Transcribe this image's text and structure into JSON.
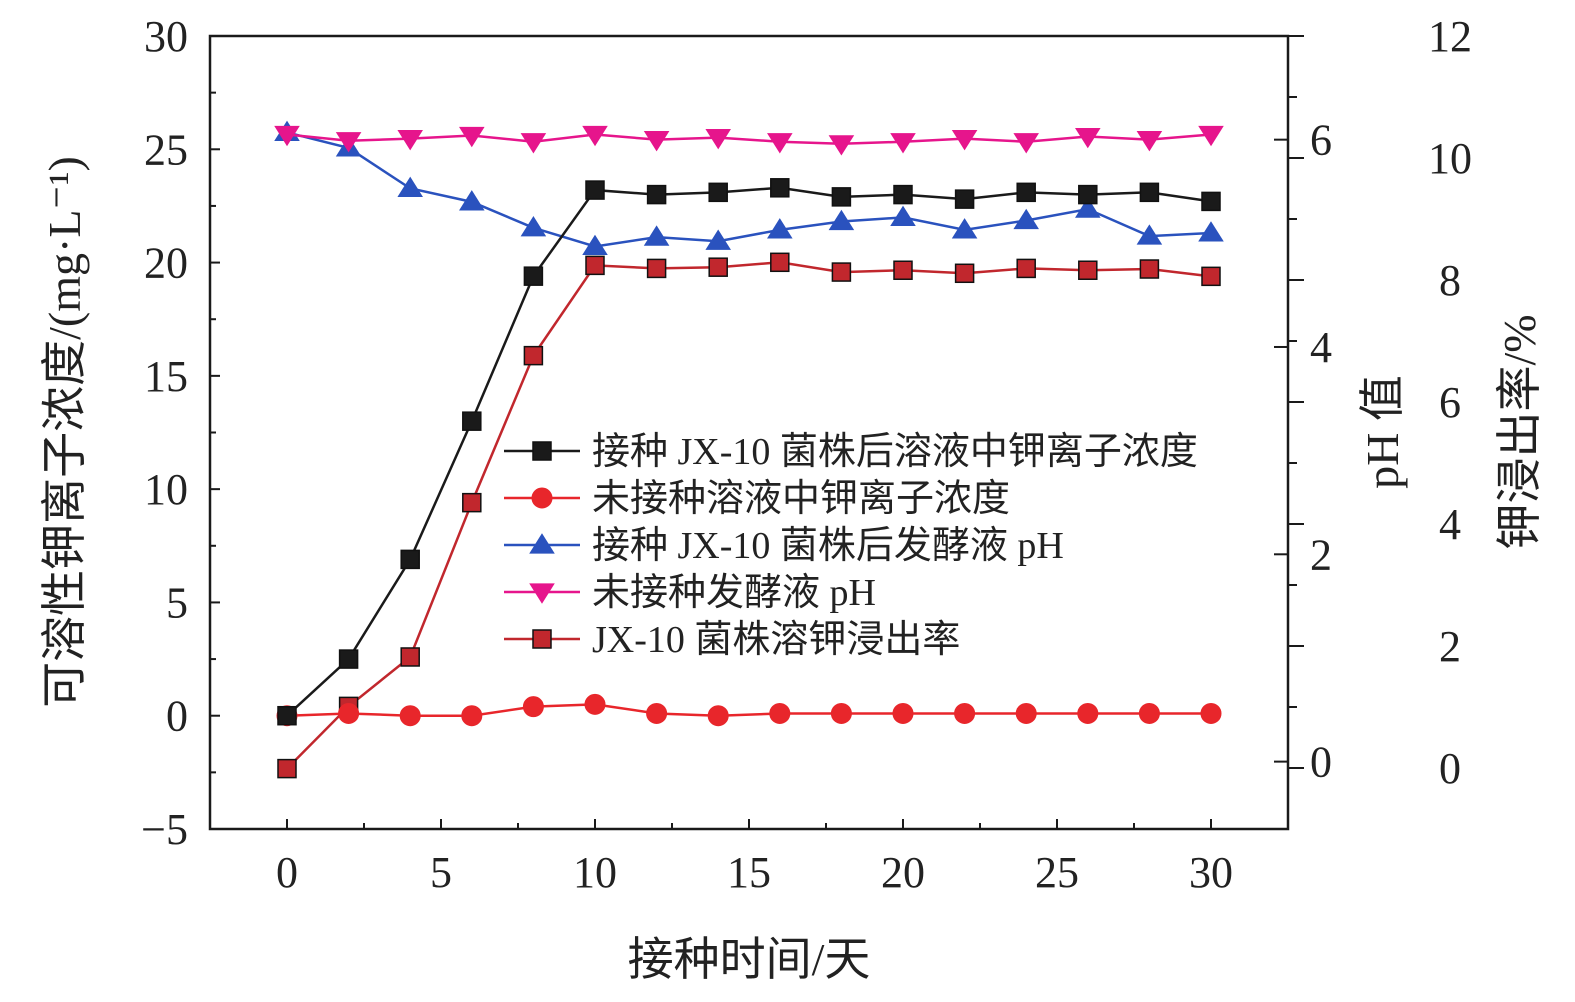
{
  "chart_data": {
    "type": "line",
    "xlabel": "接种时间/天",
    "ylabel_left": "可溶性钾离子浓度/(mg·L⁻¹)",
    "ylabel_right_ph": "pH 值",
    "ylabel_right_rate": "钾浸出率/%",
    "xlim": [
      -2.5,
      32.5
    ],
    "ylim_left": [
      -5,
      30
    ],
    "ylim_ph": [
      -0.65,
      7.0
    ],
    "ylim_rate": [
      -1.0,
      12.0
    ],
    "x_ticks": [
      0,
      5,
      10,
      15,
      20,
      25,
      30
    ],
    "y_left_ticks": [
      -5,
      0,
      5,
      10,
      15,
      20,
      25,
      30
    ],
    "y_ph_ticks": [
      0,
      2,
      4,
      6
    ],
    "y_rate_ticks": [
      0,
      2,
      4,
      6,
      8,
      10,
      12
    ],
    "x_tick_labels": [
      "0",
      "5",
      "10",
      "15",
      "20",
      "25",
      "30"
    ],
    "y_left_tick_labels": [
      "−5",
      "0",
      "5",
      "10",
      "15",
      "20",
      "25",
      "30"
    ],
    "y_ph_tick_labels": [
      "0",
      "2",
      "4",
      "6"
    ],
    "y_rate_tick_labels": [
      "0",
      "2",
      "4",
      "6",
      "8",
      "10",
      "12"
    ],
    "x": [
      0,
      2,
      4,
      6,
      8,
      10,
      12,
      14,
      16,
      18,
      20,
      22,
      24,
      26,
      28,
      30
    ],
    "legend_position": "center",
    "series": [
      {
        "name": "接种 JX-10 菌株后溶液中钾离子浓度",
        "axis": "left",
        "color": "#1a1a1a",
        "marker": "square",
        "values": [
          0,
          2.5,
          6.9,
          13.0,
          19.4,
          23.2,
          23.0,
          23.1,
          23.3,
          22.9,
          23.0,
          22.8,
          23.1,
          23.0,
          23.1,
          22.7
        ]
      },
      {
        "name": "未接种溶液中钾离子浓度",
        "axis": "left",
        "color": "#e8262b",
        "marker": "circle",
        "values": [
          0,
          0.1,
          0,
          0,
          0.4,
          0.5,
          0.1,
          0,
          0.1,
          0.1,
          0.1,
          0.1,
          0.1,
          0.1,
          0.1,
          0.1
        ]
      },
      {
        "name": "接种 JX-10 菌株后发酵液 pH",
        "axis": "ph",
        "color": "#2a52be",
        "marker": "triangle-up",
        "values": [
          6.07,
          5.92,
          5.53,
          5.4,
          5.15,
          4.97,
          5.06,
          5.02,
          5.13,
          5.21,
          5.25,
          5.13,
          5.22,
          5.33,
          5.07,
          5.1
        ]
      },
      {
        "name": "未接种发酵液 pH",
        "axis": "ph",
        "color": "#e6158c",
        "marker": "triangle-down",
        "values": [
          6.05,
          5.99,
          6.01,
          6.04,
          5.98,
          6.05,
          6.0,
          6.02,
          5.98,
          5.96,
          5.98,
          6.01,
          5.98,
          6.03,
          6.0,
          6.05
        ]
      },
      {
        "name": "JX-10 菌株溶钾浸出率",
        "axis": "rate",
        "color": "#c1272d",
        "marker": "square",
        "values": [
          -0.01,
          1.01,
          1.82,
          4.35,
          6.76,
          8.24,
          8.19,
          8.21,
          8.29,
          8.13,
          8.16,
          8.11,
          8.19,
          8.16,
          8.18,
          8.06
        ]
      }
    ]
  }
}
